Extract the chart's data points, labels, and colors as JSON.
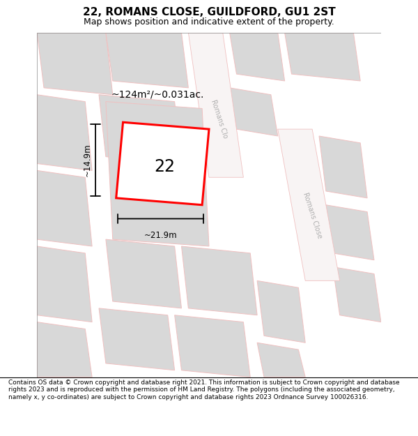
{
  "title": "22, ROMANS CLOSE, GUILDFORD, GU1 2ST",
  "subtitle": "Map shows position and indicative extent of the property.",
  "footer": "Contains OS data © Crown copyright and database right 2021. This information is subject to Crown copyright and database rights 2023 and is reproduced with the permission of HM Land Registry. The polygons (including the associated geometry, namely x, y co-ordinates) are subject to Crown copyright and database rights 2023 Ordnance Survey 100026316.",
  "area_label": "~124m²/~0.031ac.",
  "width_label": "~21.9m",
  "height_label": "~14.9m",
  "plot_number": "22",
  "map_bg": "#eeecec",
  "building_color": "#d8d8d8",
  "road_line_color": "#f0c0c0",
  "road_color": "#f8f4f4",
  "plot_fill": "#ffffff",
  "plot_edge": "#ff0000",
  "plot_lw": 2.2,
  "title_fontsize": 11,
  "subtitle_fontsize": 9,
  "footer_fontsize": 6.5
}
